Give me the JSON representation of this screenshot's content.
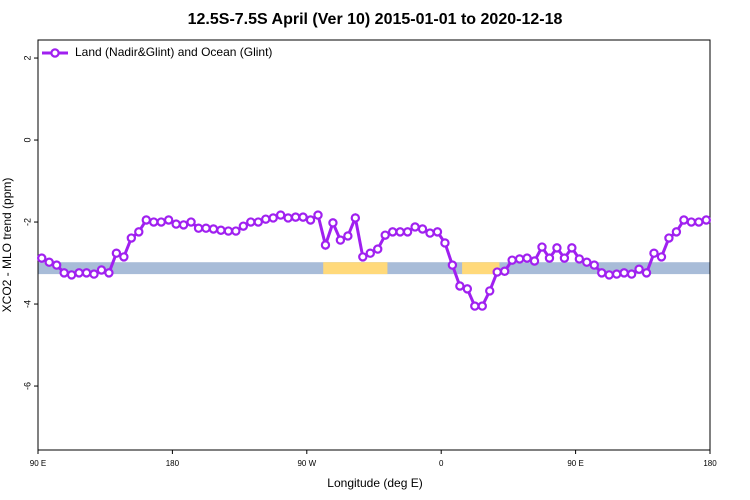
{
  "chart_data": {
    "type": "line",
    "title": "12.5S-7.5S April (Ver 10)   2015-01-01 to 2020-12-18",
    "xlabel": "Longitude (deg E)",
    "ylabel": "XCO2 - MLO trend (ppm)",
    "xlim": [
      90,
      540
    ],
    "xticks": [
      {
        "value": 90,
        "label": "90 E"
      },
      {
        "value": 180,
        "label": "180"
      },
      {
        "value": 270,
        "label": "90 W"
      },
      {
        "value": 360,
        "label": "0"
      },
      {
        "value": 450,
        "label": "90 E"
      },
      {
        "value": 540,
        "label": "180"
      }
    ],
    "ylim": [
      -7.56,
      2.44
    ],
    "yticks": [
      2,
      0,
      -2,
      -4,
      -6
    ],
    "legend": "top-left",
    "surface_band": {
      "range": [
        -3.27,
        -2.98
      ],
      "ocean_color": "#a8bcd8",
      "land_color": "#ffd97a",
      "land": [
        [
          281,
          324
        ],
        [
          374,
          399
        ]
      ]
    },
    "x": [
      92.5,
      97.5,
      102.5,
      107.5,
      112.5,
      117.5,
      122.5,
      127.5,
      132.5,
      137.5,
      142.5,
      147.5,
      152.5,
      157.5,
      162.5,
      167.5,
      172.5,
      177.5,
      182.5,
      187.5,
      192.5,
      197.5,
      202.5,
      207.5,
      212.5,
      217.5,
      222.5,
      227.5,
      232.5,
      237.5,
      242.5,
      247.5,
      252.5,
      257.5,
      262.5,
      267.5,
      272.5,
      277.5,
      282.5,
      287.5,
      292.5,
      297.5,
      302.5,
      307.5,
      312.5,
      317.5,
      322.5,
      327.5,
      332.5,
      337.5,
      342.5,
      347.5,
      352.5,
      357.5,
      362.5,
      367.5,
      372.5,
      377.5,
      382.5,
      387.5,
      392.5,
      397.5,
      402.5,
      407.5,
      412.5,
      417.5,
      422.5,
      427.5,
      432.5,
      437.5,
      442.5,
      447.5,
      452.5,
      457.5,
      462.5,
      467.5,
      472.5,
      477.5,
      482.5,
      487.5,
      492.5,
      497.5,
      502.5,
      507.5,
      512.5,
      517.5,
      522.5,
      527.5,
      532.5,
      537.5
    ],
    "series": [
      {
        "name": "Land (Nadir&Glint) and Ocean (Glint)",
        "color": "#a020f0",
        "values": [
          -2.88,
          -2.98,
          -3.05,
          -3.24,
          -3.29,
          -3.24,
          -3.24,
          -3.27,
          -3.17,
          -3.24,
          -2.76,
          -2.85,
          -2.39,
          -2.24,
          -1.95,
          -2.0,
          -2.0,
          -1.95,
          -2.05,
          -2.07,
          -2.0,
          -2.15,
          -2.15,
          -2.17,
          -2.2,
          -2.22,
          -2.22,
          -2.1,
          -2.0,
          -2.0,
          -1.93,
          -1.9,
          -1.83,
          -1.9,
          -1.88,
          -1.88,
          -1.95,
          -1.83,
          -2.56,
          -2.02,
          -2.44,
          -2.34,
          -1.9,
          -2.85,
          -2.76,
          -2.66,
          -2.32,
          -2.24,
          -2.24,
          -2.24,
          -2.12,
          -2.17,
          -2.27,
          -2.24,
          -2.51,
          -3.05,
          -3.56,
          -3.63,
          -4.05,
          -4.05,
          -3.68,
          -3.22,
          -3.2,
          -2.93,
          -2.9,
          -2.88,
          -2.95,
          -2.61,
          -2.88,
          -2.63,
          -2.88,
          -2.63,
          -2.9,
          -2.98,
          -3.05,
          -3.24,
          -3.29,
          -3.27,
          -3.24,
          -3.27,
          -3.15,
          -3.24,
          -2.76,
          -2.85,
          -2.39,
          -2.24,
          -1.95,
          -2.0,
          -2.0,
          -1.95
        ]
      }
    ]
  }
}
